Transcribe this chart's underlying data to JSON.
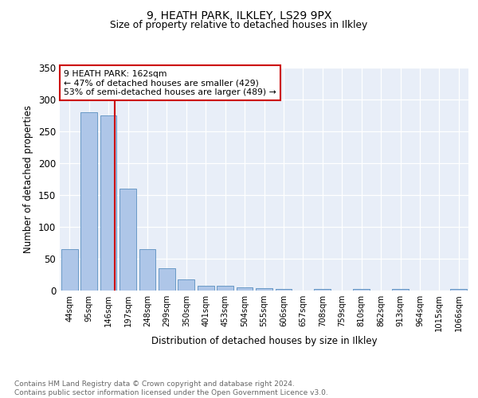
{
  "title1": "9, HEATH PARK, ILKLEY, LS29 9PX",
  "title2": "Size of property relative to detached houses in Ilkley",
  "xlabel": "Distribution of detached houses by size in Ilkley",
  "ylabel": "Number of detached properties",
  "footer": "Contains HM Land Registry data © Crown copyright and database right 2024.\nContains public sector information licensed under the Open Government Licence v3.0.",
  "categories": [
    "44sqm",
    "95sqm",
    "146sqm",
    "197sqm",
    "248sqm",
    "299sqm",
    "350sqm",
    "401sqm",
    "453sqm",
    "504sqm",
    "555sqm",
    "606sqm",
    "657sqm",
    "708sqm",
    "759sqm",
    "810sqm",
    "862sqm",
    "913sqm",
    "964sqm",
    "1015sqm",
    "1066sqm"
  ],
  "values": [
    65,
    280,
    275,
    160,
    65,
    35,
    18,
    8,
    8,
    5,
    4,
    3,
    0,
    2,
    0,
    2,
    0,
    2,
    0,
    0,
    2
  ],
  "bar_color": "#aec6e8",
  "bar_edge_color": "#5a8fc0",
  "bg_color": "#e8eef8",
  "grid_color": "#ffffff",
  "vline_color": "#cc0000",
  "annotation_text": "9 HEATH PARK: 162sqm\n← 47% of detached houses are smaller (429)\n53% of semi-detached houses are larger (489) →",
  "annotation_box_color": "#ffffff",
  "annotation_box_edge": "#cc0000",
  "ylim": [
    0,
    350
  ],
  "yticks": [
    0,
    50,
    100,
    150,
    200,
    250,
    300,
    350
  ]
}
